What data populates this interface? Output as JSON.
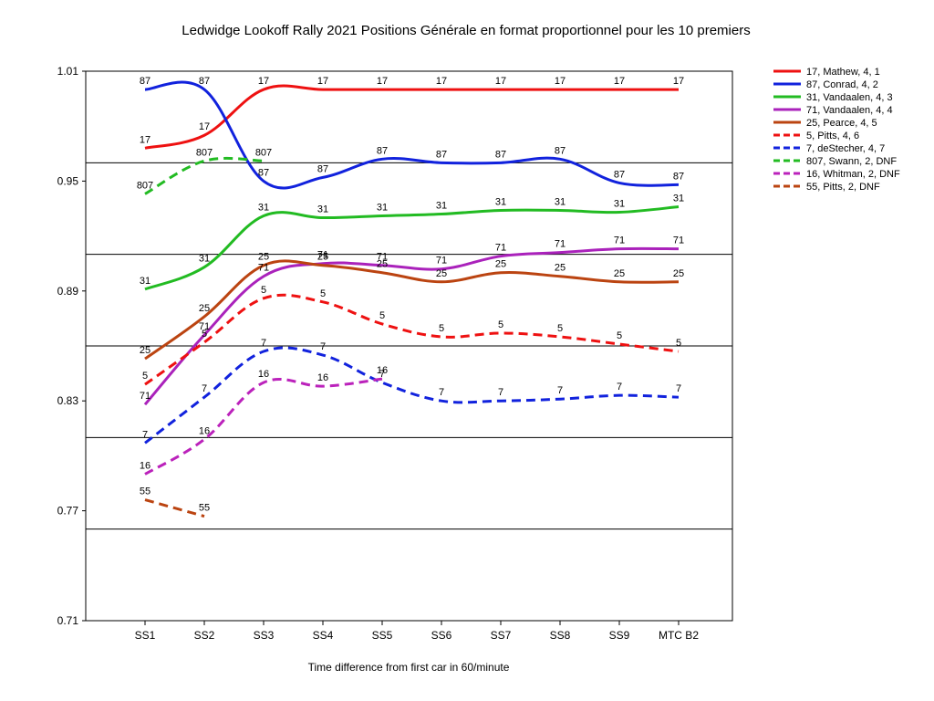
{
  "chart_data": {
    "type": "line",
    "title": "Ledwidge Lookoff Rally 2021  Positions Générale en format proportionnel pour les 10 premiers",
    "xlabel": "Time difference from first car in 60/minute",
    "ylabel": "",
    "categories": [
      "SS1",
      "SS2",
      "SS3",
      "SS4",
      "SS5",
      "SS6",
      "SS7",
      "SS8",
      "SS9",
      "MTC B2"
    ],
    "ylim": [
      0.71,
      1.01
    ],
    "yticks": [
      "1.01",
      "0.95",
      "0.89",
      "0.83",
      "0.77",
      "0.71"
    ],
    "grid": "horizontal",
    "legend_position": "right",
    "series": [
      {
        "name": "17, Mathew, 4, 1",
        "label": "17",
        "color": "#ee1111",
        "dash": false,
        "values": [
          0.968,
          0.975,
          1.0,
          1.0,
          1.0,
          1.0,
          1.0,
          1.0,
          1.0,
          1.0
        ]
      },
      {
        "name": "87, Conrad, 4, 2",
        "label": "87",
        "color": "#1122dd",
        "dash": false,
        "values": [
          1.0,
          1.0,
          0.95,
          0.952,
          0.962,
          0.96,
          0.96,
          0.962,
          0.949,
          0.948
        ]
      },
      {
        "name": "31, Vandaalen, 4, 3",
        "label": "31",
        "color": "#22bb22",
        "dash": false,
        "values": [
          0.891,
          0.903,
          0.931,
          0.93,
          0.931,
          0.932,
          0.934,
          0.934,
          0.933,
          0.936
        ]
      },
      {
        "name": "71, Vandaalen, 4, 4",
        "label": "71",
        "color": "#aa22bb",
        "dash": false,
        "values": [
          0.828,
          0.866,
          0.898,
          0.905,
          0.904,
          0.902,
          0.909,
          0.911,
          0.913,
          0.913
        ]
      },
      {
        "name": "25, Pearce, 4, 5",
        "label": "25",
        "color": "#bb4411",
        "dash": false,
        "values": [
          0.853,
          0.876,
          0.904,
          0.904,
          0.9,
          0.895,
          0.9,
          0.898,
          0.895,
          0.895
        ]
      },
      {
        "name": "5, Pitts, 4, 6",
        "label": "5",
        "color": "#ee1111",
        "dash": true,
        "values": [
          0.839,
          0.862,
          0.886,
          0.884,
          0.872,
          0.865,
          0.867,
          0.865,
          0.861,
          0.857
        ]
      },
      {
        "name": "7, deStecher, 4, 7",
        "label": "7",
        "color": "#1122dd",
        "dash": true,
        "values": [
          0.807,
          0.832,
          0.857,
          0.855,
          0.84,
          0.83,
          0.83,
          0.831,
          0.833,
          0.832
        ]
      },
      {
        "name": "807, Swann, 2, DNF",
        "label": "807",
        "color": "#22bb22",
        "dash": true,
        "values": [
          0.943,
          0.961,
          0.961,
          null,
          null,
          null,
          null,
          null,
          null,
          null
        ]
      },
      {
        "name": "16, Whitman, 2, DNF",
        "label": "16",
        "color": "#bb22bb",
        "dash": true,
        "values": [
          0.79,
          0.809,
          0.84,
          0.838,
          0.842,
          null,
          null,
          null,
          null,
          null
        ]
      },
      {
        "name": "55, Pitts, 2, DNF",
        "label": "55",
        "color": "#bb4411",
        "dash": true,
        "values": [
          0.776,
          0.767,
          null,
          null,
          null,
          null,
          null,
          null,
          null,
          null
        ]
      }
    ]
  }
}
